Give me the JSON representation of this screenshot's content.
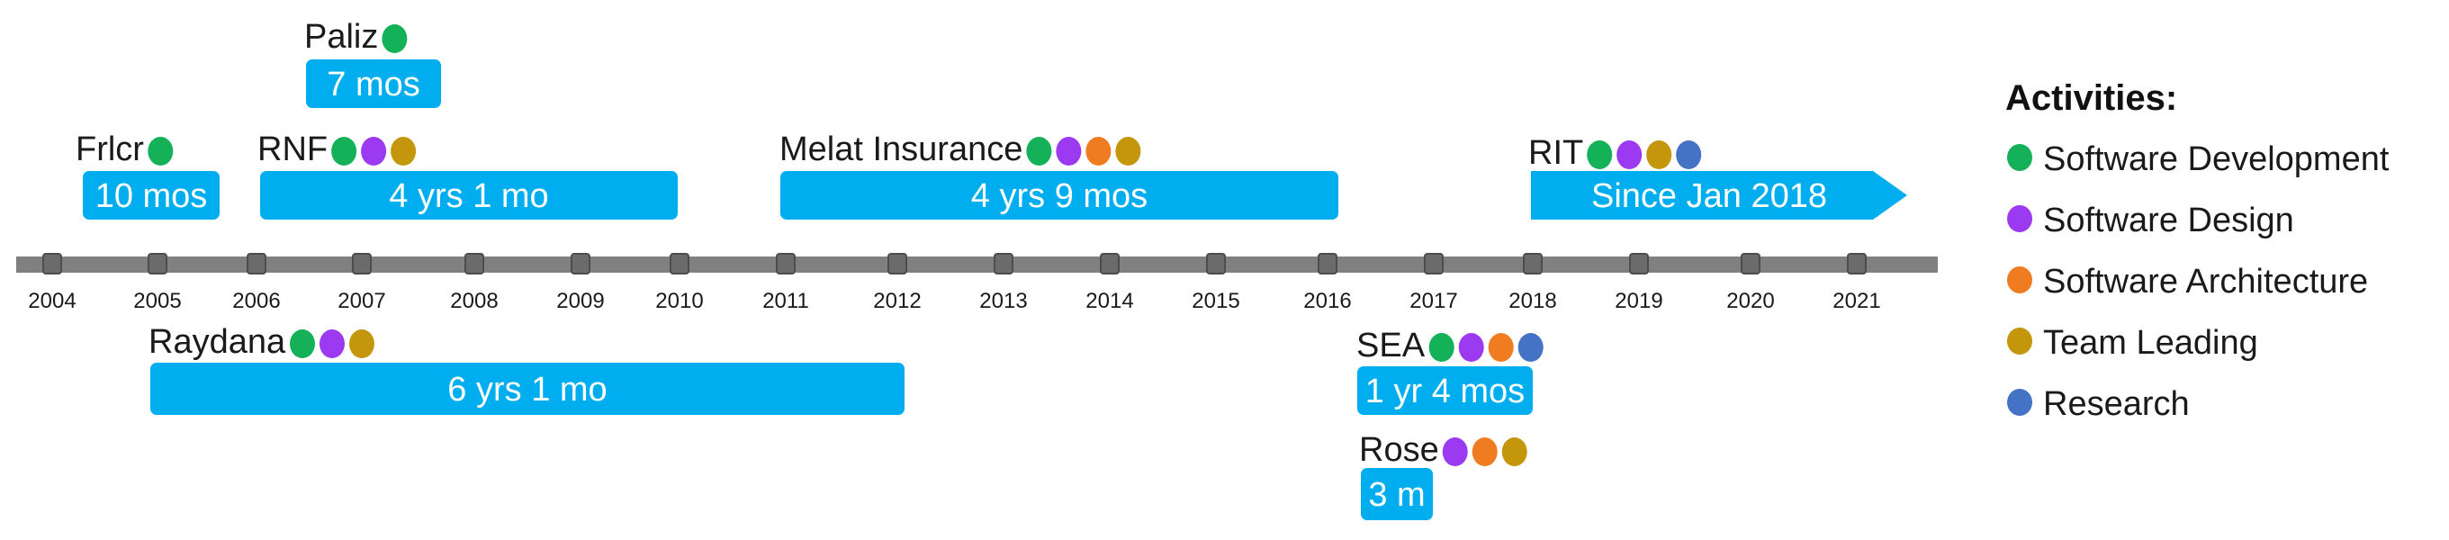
{
  "legend": {
    "title": "Activities:",
    "items": [
      {
        "key": "dev",
        "label": "Software Development",
        "color": "#14b159"
      },
      {
        "key": "design",
        "label": "Software Design",
        "color": "#9b3af0"
      },
      {
        "key": "arch",
        "label": "Software Architecture",
        "color": "#f07c22"
      },
      {
        "key": "lead",
        "label": "Team Leading",
        "color": "#c4960c"
      },
      {
        "key": "research",
        "label": "Research",
        "color": "#4472c4"
      }
    ]
  },
  "timeline": {
    "years": [
      "2004",
      "2005",
      "2006",
      "2007",
      "2008",
      "2009",
      "2010",
      "2011",
      "2012",
      "2013",
      "2014",
      "2015",
      "2016",
      "2017",
      "2018",
      "2019",
      "2020",
      "2021"
    ],
    "bar_color": "#00aeef",
    "axis_color": "#808080"
  },
  "entries": [
    {
      "name": "Paliz",
      "duration": "7 mos",
      "activities": [
        "dev"
      ]
    },
    {
      "name": "Frlcr",
      "duration": "10 mos",
      "activities": [
        "dev"
      ]
    },
    {
      "name": "RNF",
      "duration": "4 yrs 1 mo",
      "activities": [
        "dev",
        "design",
        "lead"
      ]
    },
    {
      "name": "Melat Insurance",
      "duration": "4 yrs 9 mos",
      "activities": [
        "dev",
        "design",
        "arch",
        "lead"
      ]
    },
    {
      "name": "RIT",
      "duration": "Since Jan 2018",
      "activities": [
        "dev",
        "design",
        "lead",
        "research"
      ]
    },
    {
      "name": "Raydana",
      "duration": "6 yrs 1 mo",
      "activities": [
        "dev",
        "design",
        "lead"
      ]
    },
    {
      "name": "SEA",
      "duration": "1 yr 4 mos",
      "activities": [
        "dev",
        "design",
        "arch",
        "research"
      ]
    },
    {
      "name": "Rose",
      "duration": "3 m",
      "activities": [
        "design",
        "arch",
        "lead"
      ]
    }
  ]
}
